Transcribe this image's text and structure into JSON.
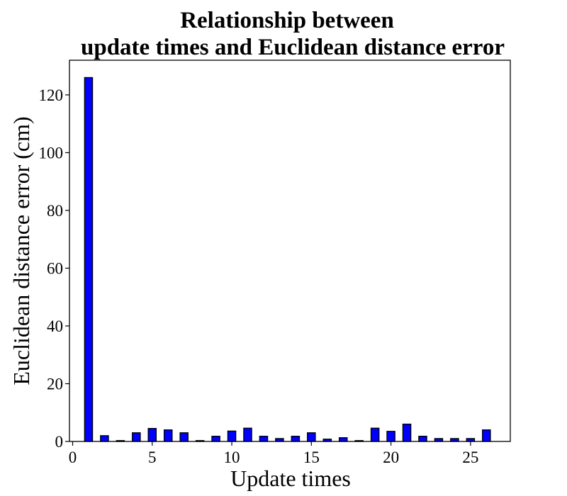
{
  "chart_data": {
    "type": "bar",
    "title_lines": [
      "Relationship between",
      "update times and Euclidean distance error"
    ],
    "xlabel": "Update times",
    "ylabel": "Euclidean distance error (cm)",
    "xlim": [
      -0.2,
      27.5
    ],
    "ylim": [
      0,
      132
    ],
    "xticks": [
      0,
      5,
      10,
      15,
      20,
      25
    ],
    "yticks": [
      0,
      20,
      40,
      60,
      80,
      100,
      120
    ],
    "bar_color": "#0000ff",
    "bar_edge_color": "#000000",
    "x": [
      1,
      2,
      3,
      4,
      5,
      6,
      7,
      8,
      9,
      10,
      11,
      12,
      13,
      14,
      15,
      16,
      17,
      18,
      19,
      20,
      21,
      22,
      23,
      24,
      25,
      26
    ],
    "values": [
      126,
      2,
      0.3,
      3,
      4.5,
      4,
      3,
      0.3,
      1.8,
      3.6,
      4.6,
      1.8,
      1,
      1.8,
      3,
      0.8,
      1.3,
      0.3,
      4.6,
      3.5,
      6,
      1.8,
      1,
      1,
      1,
      4
    ]
  }
}
